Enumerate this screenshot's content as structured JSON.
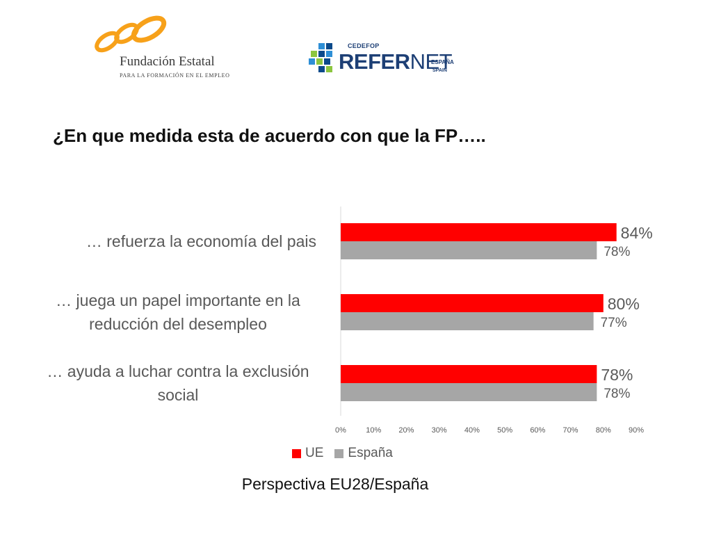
{
  "logos": {
    "fundacion": {
      "name": "Fundación Estatal",
      "tagline": "PARA LA FORMACIÓN EN EL EMPLEO",
      "color": "#F7A11A"
    },
    "refernet": {
      "cedefop": "CEDEFOP",
      "word_bold": "REFER",
      "word_light": "NET",
      "country": "ESPAÑA",
      "country_en": "SPAIN",
      "color": "#1D3F75"
    }
  },
  "slide": {
    "title": "¿En que medida esta de acuerdo con que la FP…..",
    "caption": "Perspectiva EU28/España"
  },
  "chart_data": {
    "type": "bar",
    "orientation": "horizontal",
    "categories": [
      "… refuerza la economía del pais",
      "… juega un papel importante en la reducción del desempleo",
      "… ayuda a luchar contra la exclusión social"
    ],
    "category_lines": [
      [
        "… refuerza la economía del pais"
      ],
      [
        "… juega un papel importante en la",
        "reducción del desempleo"
      ],
      [
        "… ayuda a luchar contra la exclusión",
        "social"
      ]
    ],
    "series": [
      {
        "name": "UE",
        "values": [
          84,
          80,
          78
        ],
        "labels": [
          "84%",
          "80%",
          "78%"
        ],
        "color": "#FF0000"
      },
      {
        "name": "España",
        "values": [
          78,
          77,
          78
        ],
        "labels": [
          "78%",
          "77%",
          "78%"
        ],
        "color": "#A6A6A6"
      }
    ],
    "xlim": [
      0,
      90
    ],
    "xticks": [
      "0%",
      "10%",
      "20%",
      "30%",
      "40%",
      "50%",
      "60%",
      "70%",
      "80%",
      "90%"
    ],
    "grid": false,
    "legend": "bottom"
  }
}
